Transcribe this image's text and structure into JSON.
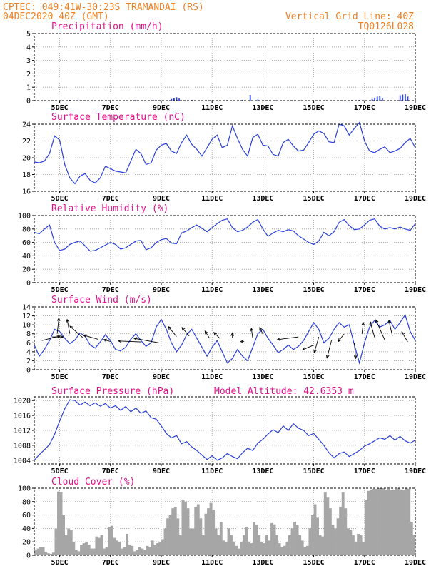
{
  "header": {
    "left_line1": "CPTEC:  049:41W-30:23S  TRAMANDAI (RS)",
    "left_line2": "04DEC2020 40Z (GMT)",
    "right_line1": "Vertical Grid Line: 40Z",
    "right_line2": "TQ0126L028"
  },
  "x_axis": {
    "start_day": 4.0,
    "end_day": 19.0,
    "tick_days": [
      5,
      7,
      9,
      11,
      13,
      15,
      17,
      19
    ],
    "tick_labels": [
      "5DEC",
      "7DEC",
      "9DEC",
      "11DEC",
      "13DEC",
      "15DEC",
      "17DEC",
      "19DEC"
    ]
  },
  "chart_data": [
    {
      "id": "precip",
      "type": "bar",
      "title": "Precipitation (mm/h)",
      "ylim": [
        0,
        5
      ],
      "yticks": [
        0,
        1,
        2,
        3,
        4,
        5
      ],
      "x": [
        5.1,
        5.4,
        5.8,
        6.3,
        6.8,
        7.4,
        8.0,
        8.7,
        9.4,
        9.5,
        9.6,
        9.7,
        10.2,
        11.0,
        11.6,
        12.2,
        12.5,
        12.8,
        13.5,
        14.5,
        15.5,
        16.5,
        16.8,
        17.3,
        17.4,
        17.5,
        17.6,
        17.7,
        18.4,
        18.5,
        18.6,
        18.7
      ],
      "values": [
        0.02,
        0.05,
        0.03,
        0.02,
        0.03,
        0.02,
        0.03,
        0.04,
        0.12,
        0.18,
        0.25,
        0.15,
        0.05,
        0.03,
        0.04,
        0.05,
        0.42,
        0.08,
        0.03,
        0.02,
        0.03,
        0.04,
        0.05,
        0.12,
        0.22,
        0.3,
        0.35,
        0.2,
        0.4,
        0.45,
        0.5,
        0.3
      ]
    },
    {
      "id": "temp",
      "type": "line",
      "title": "Surface Temperature (nC)",
      "ylim": [
        16,
        24
      ],
      "yticks": [
        16,
        18,
        20,
        22,
        24
      ],
      "x": [
        4.0,
        4.2,
        4.4,
        4.6,
        4.8,
        5.0,
        5.2,
        5.4,
        5.6,
        5.8,
        6.0,
        6.2,
        6.4,
        6.6,
        6.8,
        7.0,
        7.2,
        7.4,
        7.6,
        7.8,
        8.0,
        8.2,
        8.4,
        8.6,
        8.8,
        9.0,
        9.2,
        9.4,
        9.6,
        9.8,
        10.0,
        10.2,
        10.4,
        10.6,
        10.8,
        11.0,
        11.2,
        11.4,
        11.6,
        11.8,
        12.0,
        12.2,
        12.4,
        12.6,
        12.8,
        13.0,
        13.2,
        13.4,
        13.6,
        13.8,
        14.0,
        14.2,
        14.4,
        14.6,
        14.8,
        15.0,
        15.2,
        15.4,
        15.6,
        15.8,
        16.0,
        16.2,
        16.4,
        16.6,
        16.8,
        17.0,
        17.2,
        17.4,
        17.6,
        17.8,
        18.0,
        18.2,
        18.4,
        18.6,
        18.8,
        19.0
      ],
      "values": [
        19.5,
        19.4,
        19.6,
        20.5,
        22.6,
        22.1,
        19.2,
        17.6,
        16.9,
        17.8,
        18.1,
        17.3,
        17.0,
        17.6,
        19.0,
        18.7,
        18.4,
        18.3,
        18.2,
        19.6,
        21.0,
        20.5,
        19.2,
        19.4,
        20.9,
        21.5,
        21.7,
        20.8,
        20.5,
        21.8,
        22.7,
        21.6,
        21.0,
        20.2,
        21.2,
        22.2,
        22.7,
        21.2,
        21.5,
        23.8,
        22.3,
        21.0,
        20.2,
        22.4,
        22.8,
        21.5,
        21.4,
        20.4,
        20.2,
        21.8,
        22.2,
        21.4,
        20.8,
        20.9,
        21.8,
        22.8,
        23.2,
        22.9,
        21.9,
        21.8,
        24.0,
        23.8,
        22.7,
        23.5,
        24.2,
        22.0,
        20.8,
        20.6,
        21.0,
        21.3,
        20.6,
        20.8,
        21.1,
        21.8,
        22.3,
        21.2
      ]
    },
    {
      "id": "rh",
      "type": "line",
      "title": "Relative Humidity (%)",
      "ylim": [
        0,
        100
      ],
      "yticks": [
        0,
        20,
        40,
        60,
        80,
        100
      ],
      "x": [
        4.0,
        4.2,
        4.4,
        4.6,
        4.8,
        5.0,
        5.2,
        5.4,
        5.6,
        5.8,
        6.0,
        6.2,
        6.4,
        6.6,
        6.8,
        7.0,
        7.2,
        7.4,
        7.6,
        7.8,
        8.0,
        8.2,
        8.4,
        8.6,
        8.8,
        9.0,
        9.2,
        9.4,
        9.6,
        9.8,
        10.0,
        10.2,
        10.4,
        10.6,
        10.8,
        11.0,
        11.2,
        11.4,
        11.6,
        11.8,
        12.0,
        12.2,
        12.4,
        12.6,
        12.8,
        13.0,
        13.2,
        13.4,
        13.6,
        13.8,
        14.0,
        14.2,
        14.4,
        14.6,
        14.8,
        15.0,
        15.2,
        15.4,
        15.6,
        15.8,
        16.0,
        16.2,
        16.4,
        16.6,
        16.8,
        17.0,
        17.2,
        17.4,
        17.6,
        17.8,
        18.0,
        18.2,
        18.4,
        18.6,
        18.8,
        19.0
      ],
      "values": [
        75,
        73,
        80,
        86,
        60,
        48,
        50,
        57,
        60,
        62,
        55,
        47,
        48,
        52,
        56,
        60,
        57,
        50,
        52,
        57,
        62,
        63,
        49,
        52,
        60,
        64,
        66,
        59,
        58,
        74,
        77,
        82,
        86,
        81,
        76,
        82,
        88,
        93,
        95,
        82,
        76,
        78,
        83,
        90,
        94,
        80,
        69,
        74,
        78,
        76,
        79,
        77,
        70,
        65,
        60,
        57,
        62,
        75,
        70,
        76,
        90,
        94,
        85,
        79,
        80,
        86,
        93,
        95,
        84,
        80,
        82,
        80,
        83,
        80,
        78,
        88
      ]
    },
    {
      "id": "wind",
      "type": "line",
      "title": "Surface Wind (m/s)",
      "ylim": [
        0,
        14
      ],
      "yticks": [
        0,
        2,
        4,
        6,
        8,
        10,
        12,
        14
      ],
      "x": [
        4.0,
        4.2,
        4.4,
        4.6,
        4.8,
        5.0,
        5.2,
        5.4,
        5.6,
        5.8,
        6.0,
        6.2,
        6.4,
        6.6,
        6.8,
        7.0,
        7.2,
        7.4,
        7.6,
        7.8,
        8.0,
        8.2,
        8.4,
        8.6,
        8.8,
        9.0,
        9.2,
        9.4,
        9.6,
        9.8,
        10.0,
        10.2,
        10.4,
        10.6,
        10.8,
        11.0,
        11.2,
        11.4,
        11.6,
        11.8,
        12.0,
        12.2,
        12.4,
        12.6,
        12.8,
        13.0,
        13.2,
        13.4,
        13.6,
        13.8,
        14.0,
        14.2,
        14.4,
        14.6,
        14.8,
        15.0,
        15.2,
        15.4,
        15.6,
        15.8,
        16.0,
        16.2,
        16.4,
        16.6,
        16.8,
        17.0,
        17.2,
        17.4,
        17.6,
        17.8,
        18.0,
        18.2,
        18.4,
        18.6,
        18.8,
        19.0
      ],
      "values": [
        5.5,
        3.0,
        4.5,
        6.5,
        9.0,
        8.5,
        7.0,
        5.8,
        6.6,
        8.2,
        7.5,
        5.5,
        4.8,
        6.2,
        7.8,
        6.5,
        4.5,
        4.2,
        5.0,
        6.8,
        8.0,
        6.5,
        5.2,
        6.0,
        9.5,
        11.2,
        9.0,
        6.0,
        4.0,
        5.5,
        7.8,
        9.0,
        7.0,
        5.0,
        3.0,
        5.0,
        6.5,
        4.0,
        1.5,
        2.5,
        4.5,
        3.0,
        2.0,
        5.0,
        8.0,
        9.0,
        7.0,
        5.5,
        3.8,
        4.5,
        5.5,
        4.5,
        5.2,
        6.5,
        8.5,
        10.5,
        9.0,
        6.0,
        7.0,
        9.0,
        10.5,
        9.5,
        10.0,
        5.5,
        1.5,
        6.0,
        9.5,
        11.0,
        9.5,
        10.0,
        11.0,
        9.0,
        10.5,
        12.2,
        8.5,
        6.5
      ],
      "vectors": [
        {
          "x": 4.3,
          "y": 6.5,
          "u": 4.0,
          "v": 1.0
        },
        {
          "x": 4.7,
          "y": 7.3,
          "u": 2.5,
          "v": 0.0
        },
        {
          "x": 4.9,
          "y": 8.0,
          "u": 0.4,
          "v": 3.5
        },
        {
          "x": 5.4,
          "y": 8.0,
          "u": -0.6,
          "v": 3.2
        },
        {
          "x": 5.9,
          "y": 7.2,
          "u": -2.8,
          "v": 2.5
        },
        {
          "x": 6.5,
          "y": 6.8,
          "u": -3.2,
          "v": 0.9
        },
        {
          "x": 7.0,
          "y": 6.3,
          "u": -1.5,
          "v": 0.4
        },
        {
          "x": 8.2,
          "y": 6.2,
          "u": -5.0,
          "v": 0.2
        },
        {
          "x": 8.9,
          "y": 6.0,
          "u": -5.5,
          "v": 1.0
        },
        {
          "x": 9.6,
          "y": 7.4,
          "u": -1.8,
          "v": 2.2
        },
        {
          "x": 10.1,
          "y": 7.5,
          "u": -1.6,
          "v": 1.9
        },
        {
          "x": 10.9,
          "y": 7.0,
          "u": -1.0,
          "v": 1.6
        },
        {
          "x": 11.3,
          "y": 7.0,
          "u": -1.3,
          "v": 1.3
        },
        {
          "x": 11.8,
          "y": 7.0,
          "u": 0.0,
          "v": 1.2
        },
        {
          "x": 12.1,
          "y": 6.3,
          "u": 0.8,
          "v": 0.0
        },
        {
          "x": 12.6,
          "y": 7.0,
          "u": -0.3,
          "v": 2.2
        },
        {
          "x": 13.0,
          "y": 7.9,
          "u": -0.7,
          "v": 1.5
        },
        {
          "x": 14.4,
          "y": 7.3,
          "u": -4.7,
          "v": -0.6
        },
        {
          "x": 15.0,
          "y": 5.5,
          "u": -2.5,
          "v": -1.1
        },
        {
          "x": 15.2,
          "y": 7.3,
          "u": -1.0,
          "v": -3.5
        },
        {
          "x": 15.7,
          "y": 6.5,
          "u": -1.0,
          "v": -3.9
        },
        {
          "x": 16.2,
          "y": 8.0,
          "u": -1.3,
          "v": -1.7
        },
        {
          "x": 16.6,
          "y": 6.0,
          "u": 0.3,
          "v": -3.5
        },
        {
          "x": 16.9,
          "y": 8.0,
          "u": 0.3,
          "v": 2.5
        },
        {
          "x": 17.4,
          "y": 7.2,
          "u": -1.0,
          "v": 3.5
        },
        {
          "x": 17.8,
          "y": 6.6,
          "u": -2.0,
          "v": 4.5
        },
        {
          "x": 18.1,
          "y": 7.5,
          "u": -0.8,
          "v": 3.5
        },
        {
          "x": 18.7,
          "y": 6.2,
          "u": -1.3,
          "v": 2.2
        }
      ]
    },
    {
      "id": "pressure",
      "type": "line",
      "title": "Surface Pressure (hPa)",
      "annotation": "Model Altitude: 42.6353 m",
      "ylim": [
        1003,
        1021
      ],
      "yticks": [
        1004,
        1008,
        1012,
        1016,
        1020
      ],
      "x": [
        4.0,
        4.2,
        4.4,
        4.6,
        4.8,
        5.0,
        5.2,
        5.4,
        5.6,
        5.8,
        6.0,
        6.2,
        6.4,
        6.6,
        6.8,
        7.0,
        7.2,
        7.4,
        7.6,
        7.8,
        8.0,
        8.2,
        8.4,
        8.6,
        8.8,
        9.0,
        9.2,
        9.4,
        9.6,
        9.8,
        10.0,
        10.2,
        10.4,
        10.6,
        10.8,
        11.0,
        11.2,
        11.4,
        11.6,
        11.8,
        12.0,
        12.2,
        12.4,
        12.6,
        12.8,
        13.0,
        13.2,
        13.4,
        13.6,
        13.8,
        14.0,
        14.2,
        14.4,
        14.6,
        14.8,
        15.0,
        15.2,
        15.4,
        15.6,
        15.8,
        16.0,
        16.2,
        16.4,
        16.6,
        16.8,
        17.0,
        17.2,
        17.4,
        17.6,
        17.8,
        18.0,
        18.2,
        18.4,
        18.6,
        18.8,
        19.0
      ],
      "values": [
        1004.0,
        1005.5,
        1006.8,
        1008.2,
        1011.0,
        1014.5,
        1017.8,
        1020.2,
        1020.0,
        1018.8,
        1019.6,
        1018.6,
        1019.4,
        1018.5,
        1019.2,
        1018.0,
        1018.6,
        1017.4,
        1018.4,
        1017.0,
        1018.0,
        1016.6,
        1017.2,
        1015.4,
        1015.0,
        1013.2,
        1011.2,
        1010.0,
        1010.6,
        1008.4,
        1009.0,
        1007.6,
        1006.6,
        1005.4,
        1004.2,
        1005.2,
        1004.0,
        1004.6,
        1005.8,
        1005.0,
        1004.4,
        1006.0,
        1007.2,
        1006.6,
        1008.6,
        1009.6,
        1011.0,
        1012.2,
        1011.4,
        1013.2,
        1012.0,
        1013.8,
        1012.6,
        1012.0,
        1010.6,
        1011.2,
        1009.6,
        1008.0,
        1006.0,
        1004.6,
        1005.8,
        1006.2,
        1005.0,
        1005.8,
        1006.6,
        1007.8,
        1008.4,
        1009.2,
        1010.0,
        1009.6,
        1010.6,
        1009.4,
        1010.4,
        1009.2,
        1008.6,
        1009.4
      ]
    },
    {
      "id": "cloud",
      "type": "bar",
      "title": "Cloud Cover (%)",
      "ylim": [
        0,
        100
      ],
      "yticks": [
        0,
        20,
        40,
        60,
        80,
        100
      ],
      "x": [
        4.0,
        4.1,
        4.2,
        4.3,
        4.4,
        4.5,
        4.6,
        4.7,
        4.8,
        4.9,
        5.0,
        5.1,
        5.2,
        5.3,
        5.4,
        5.5,
        5.6,
        5.7,
        5.8,
        5.9,
        6.0,
        6.1,
        6.2,
        6.3,
        6.4,
        6.5,
        6.6,
        6.7,
        6.8,
        6.9,
        7.0,
        7.1,
        7.2,
        7.3,
        7.4,
        7.5,
        7.6,
        7.7,
        7.8,
        7.9,
        8.0,
        8.1,
        8.2,
        8.3,
        8.4,
        8.5,
        8.6,
        8.7,
        8.8,
        8.9,
        9.0,
        9.1,
        9.2,
        9.3,
        9.4,
        9.5,
        9.6,
        9.7,
        9.8,
        9.9,
        10.0,
        10.1,
        10.2,
        10.3,
        10.4,
        10.5,
        10.6,
        10.7,
        10.8,
        10.9,
        11.0,
        11.1,
        11.2,
        11.3,
        11.4,
        11.5,
        11.6,
        11.7,
        11.8,
        11.9,
        12.0,
        12.1,
        12.2,
        12.3,
        12.4,
        12.5,
        12.6,
        12.7,
        12.8,
        12.9,
        13.0,
        13.1,
        13.2,
        13.3,
        13.4,
        13.5,
        13.6,
        13.7,
        13.8,
        13.9,
        14.0,
        14.1,
        14.2,
        14.3,
        14.4,
        14.5,
        14.6,
        14.7,
        14.8,
        14.9,
        15.0,
        15.1,
        15.2,
        15.3,
        15.4,
        15.5,
        15.6,
        15.7,
        15.8,
        15.9,
        16.0,
        16.1,
        16.2,
        16.3,
        16.4,
        16.5,
        16.6,
        16.7,
        16.8,
        16.9,
        17.0,
        17.1,
        17.2,
        17.3,
        17.4,
        17.5,
        17.6,
        17.7,
        17.8,
        17.9,
        18.0,
        18.1,
        18.2,
        18.3,
        18.4,
        18.5,
        18.6,
        18.7,
        18.8,
        18.9
      ],
      "values": [
        8,
        10,
        12,
        12,
        5,
        3,
        2,
        4,
        40,
        95,
        94,
        60,
        30,
        40,
        38,
        20,
        8,
        6,
        15,
        18,
        20,
        16,
        10,
        10,
        28,
        26,
        30,
        10,
        12,
        42,
        44,
        26,
        22,
        20,
        10,
        12,
        32,
        16,
        14,
        6,
        8,
        12,
        10,
        8,
        14,
        12,
        22,
        16,
        18,
        20,
        24,
        40,
        55,
        60,
        70,
        72,
        55,
        30,
        82,
        80,
        70,
        40,
        40,
        72,
        76,
        55,
        30,
        62,
        70,
        78,
        68,
        40,
        30,
        50,
        22,
        20,
        40,
        30,
        20,
        14,
        10,
        20,
        30,
        42,
        20,
        18,
        50,
        45,
        30,
        20,
        18,
        30,
        22,
        48,
        46,
        30,
        18,
        12,
        14,
        20,
        30,
        40,
        50,
        45,
        30,
        22,
        12,
        14,
        40,
        60,
        76,
        56,
        30,
        28,
        94,
        86,
        70,
        45,
        40,
        55,
        72,
        94,
        70,
        40,
        38,
        30,
        20,
        32,
        30,
        20,
        82,
        96,
        98,
        99,
        99,
        100,
        100,
        100,
        98,
        99,
        97,
        98,
        99,
        100,
        98,
        97,
        100,
        99,
        50,
        30
      ]
    }
  ]
}
